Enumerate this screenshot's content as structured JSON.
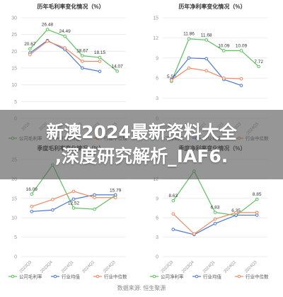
{
  "banner": {
    "line1": "新澳2024最新资料大全",
    "line2": ",深度研究解析_IAF6."
  },
  "source_text": "数据来源: 恒生聚源",
  "colors": {
    "company": "#5cc05c",
    "industry_avg": "#4a78d0",
    "industry_median": "#f08860",
    "grid": "#e8e8e8",
    "axis_text": "#999999"
  },
  "chart_data": [
    {
      "type": "line",
      "title": "历年毛利率变化情况（%）",
      "x": [
        "2019",
        "2020",
        "2021",
        "2022",
        "2023",
        "2024Q3"
      ],
      "ylim": [
        0,
        30
      ],
      "yticks": [
        0,
        5,
        10,
        15,
        20,
        25,
        30
      ],
      "grid": true,
      "series": [
        {
          "name": "公司毛利率",
          "color": "#5cc05c",
          "values": [
            20.67,
            26.48,
            24.49,
            18.67,
            18.15,
            14.07
          ],
          "labels": [
            "20.67",
            "26.48",
            "24.49",
            "18.67",
            "18.15",
            "14.07"
          ]
        },
        {
          "name": "行业均值",
          "color": "#4a78d0",
          "values": [
            19.5,
            23.2,
            20.5,
            15.0,
            14.0,
            null
          ]
        },
        {
          "name": "行业中位数",
          "color": "#f08860",
          "values": [
            19.0,
            23.0,
            21.0,
            17.0,
            17.0,
            null
          ]
        }
      ]
    },
    {
      "type": "line",
      "title": "历年净利率变化情况（%）",
      "x": [
        "2019",
        "2020",
        "2021",
        "2022",
        "2023",
        "2024Q3"
      ],
      "ylim": [
        0,
        15
      ],
      "yticks": [
        0,
        3,
        6,
        9,
        12,
        15
      ],
      "grid": true,
      "series": [
        {
          "name": "公司净利率",
          "color": "#5cc05c",
          "values": [
            5.5,
            11.86,
            11.68,
            10.09,
            10.09,
            7.72
          ],
          "labels": [
            "5.50",
            "11.86",
            "11.68",
            "10.09",
            "10.09",
            "7.72"
          ]
        },
        {
          "name": "行业均值",
          "color": "#4a78d0",
          "values": [
            5.8,
            9.0,
            8.9,
            5.8,
            4.9,
            null
          ]
        },
        {
          "name": "行业中位数",
          "color": "#f08860",
          "values": [
            5.7,
            7.5,
            7.1,
            6.0,
            5.9,
            null
          ]
        }
      ]
    },
    {
      "type": "line",
      "title": "季度毛利率变化情况（%）",
      "x": [
        "2023Q3",
        "2023Q4",
        "2024Q1",
        "2024Q2",
        "2024Q3"
      ],
      "ylim": [
        0,
        25
      ],
      "yticks": [
        0,
        5,
        10,
        15,
        20,
        25
      ],
      "grid": true,
      "series": [
        {
          "name": "公司毛利率",
          "color": "#5cc05c",
          "values": [
            16.09,
            23.6,
            12.52,
            12.2,
            15.79
          ],
          "labels": [
            "16.09",
            "",
            "12.52",
            "",
            "15.79"
          ]
        },
        {
          "name": "行业均值",
          "color": "#4a78d0",
          "values": [
            11.6,
            12.0,
            14.8,
            15.9,
            15.9
          ]
        },
        {
          "name": "行业中位数",
          "color": "#f08860",
          "values": [
            12.9,
            14.7,
            16.8,
            15.2,
            15.2
          ]
        }
      ]
    },
    {
      "type": "line",
      "title": "季度净利率变化情况（%）",
      "x": [
        "2023Q3",
        "2023Q4",
        "2024Q1",
        "2024Q2",
        "2024Q3"
      ],
      "ylim": [
        0,
        15
      ],
      "yticks": [
        0,
        3,
        6,
        9,
        12,
        15
      ],
      "grid": true,
      "series": [
        {
          "name": "公司净利率",
          "color": "#5cc05c",
          "values": [
            8.63,
            13.2,
            6.83,
            6.35,
            8.85
          ],
          "labels": [
            "8.63",
            "",
            "6.83",
            "6.35",
            "8.85"
          ]
        },
        {
          "name": "行业均值",
          "color": "#4a78d0",
          "values": [
            4.2,
            3.4,
            5.1,
            6.4,
            6.4
          ]
        },
        {
          "name": "行业中位数",
          "color": "#f08860",
          "values": [
            6.6,
            3.5,
            5.8,
            6.8,
            6.8
          ]
        }
      ]
    }
  ]
}
